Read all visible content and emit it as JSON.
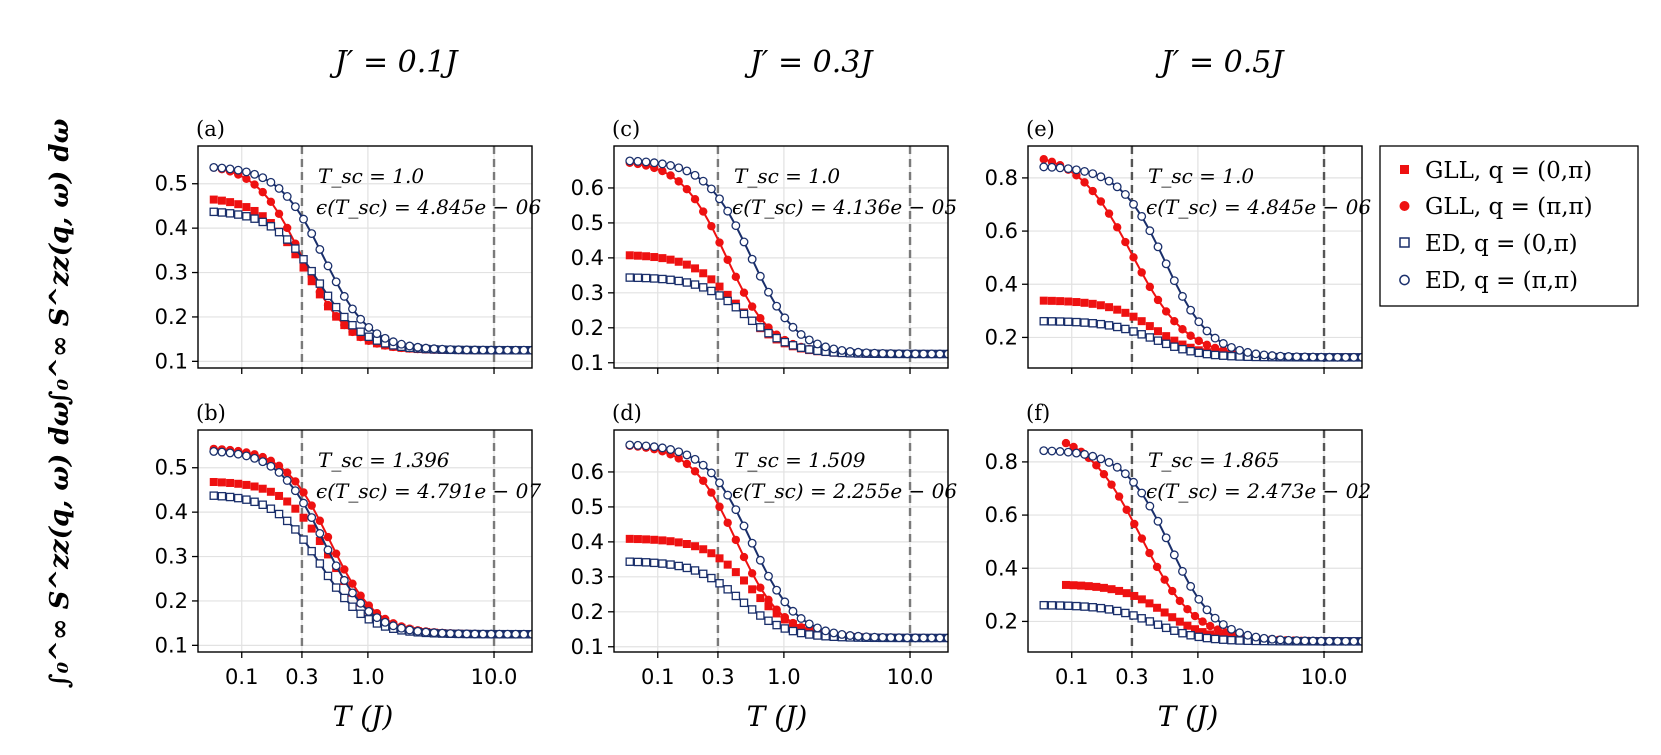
{
  "colors": {
    "gll": "#ee1111",
    "ed": "#1a2f6b",
    "grid": "#e2e2e2",
    "vline": "#7a7a7a"
  },
  "column_titles": [
    "J′ = 0.1J",
    "J′ = 0.3J",
    "J′ = 0.5J"
  ],
  "y_axis_label": "∫₀^∞ S^zz(q, ω) dω",
  "x_axis_label": "T (J)",
  "legend": [
    "GLL,  q = (0,π)",
    "GLL,  q = (π,π)",
    "ED,    q = (0,π)",
    "ED,    q = (π,π)"
  ],
  "chart_data": [
    {
      "type": "line",
      "panel": "(a)",
      "row": 0,
      "col": 0,
      "xscale": "log",
      "xlim": [
        0.045,
        20
      ],
      "ylim": [
        0.085,
        0.585
      ],
      "xticks": [
        0.1,
        0.3,
        1.0,
        10.0
      ],
      "xtick_labels": [
        "0.1",
        "0.3",
        "1.0",
        "10.0"
      ],
      "yticks": [
        0.1,
        0.2,
        0.3,
        0.4,
        0.5
      ],
      "ytick_labels": [
        "0.1",
        "0.2",
        "0.3",
        "0.4",
        "0.5"
      ],
      "vlines": [
        0.3,
        10.0
      ],
      "annotation": [
        "T_sc = 1.0",
        "ϵ(T_sc) = 4.845e − 06"
      ],
      "curves": {
        "gll_0pi": {
          "tmin": 0.06,
          "high": 0.47,
          "t0": 0.33,
          "low": 0.125
        },
        "gll_pipi": {
          "tmin": 0.06,
          "high": 0.545,
          "t0": 0.3,
          "low": 0.125
        },
        "ed_0pi": {
          "tmin": 0.06,
          "high": 0.44,
          "t0": 0.4,
          "low": 0.125
        },
        "ed_pipi": {
          "tmin": 0.06,
          "high": 0.54,
          "t0": 0.45,
          "low": 0.125
        }
      }
    },
    {
      "type": "line",
      "panel": "(b)",
      "row": 1,
      "col": 0,
      "xscale": "log",
      "xlim": [
        0.045,
        20
      ],
      "ylim": [
        0.085,
        0.585
      ],
      "xticks": [
        0.1,
        0.3,
        1.0,
        10.0
      ],
      "xtick_labels": [
        "0.1",
        "0.3",
        "1.0",
        "10.0"
      ],
      "yticks": [
        0.1,
        0.2,
        0.3,
        0.4,
        0.5
      ],
      "ytick_labels": [
        "0.1",
        "0.2",
        "0.3",
        "0.4",
        "0.5"
      ],
      "vlines": [
        0.3,
        10.0
      ],
      "annotation": [
        "T_sc = 1.396",
        "ϵ(T_sc) = 4.791e − 07"
      ],
      "curves": {
        "gll_0pi": {
          "tmin": 0.06,
          "high": 0.47,
          "t0": 0.5,
          "low": 0.125
        },
        "gll_pipi": {
          "tmin": 0.06,
          "high": 0.545,
          "t0": 0.5,
          "low": 0.125
        },
        "ed_0pi": {
          "tmin": 0.06,
          "high": 0.44,
          "t0": 0.42,
          "low": 0.125
        },
        "ed_pipi": {
          "tmin": 0.06,
          "high": 0.54,
          "t0": 0.45,
          "low": 0.125
        }
      }
    },
    {
      "type": "line",
      "panel": "(c)",
      "row": 0,
      "col": 1,
      "xscale": "log",
      "xlim": [
        0.045,
        20
      ],
      "ylim": [
        0.085,
        0.72
      ],
      "xticks": [
        0.1,
        0.3,
        1.0,
        10.0
      ],
      "xtick_labels": [
        "0.1",
        "0.3",
        "1.0",
        "10.0"
      ],
      "yticks": [
        0.1,
        0.2,
        0.3,
        0.4,
        0.5,
        0.6
      ],
      "ytick_labels": [
        "0.1",
        "0.2",
        "0.3",
        "0.4",
        "0.5",
        "0.6"
      ],
      "vlines": [
        0.3,
        10.0
      ],
      "annotation": [
        "T_sc = 1.0",
        "ϵ(T_sc) = 4.136e − 05"
      ],
      "curves": {
        "gll_0pi": {
          "tmin": 0.06,
          "high": 0.41,
          "t0": 0.42,
          "low": 0.125
        },
        "gll_pipi": {
          "tmin": 0.06,
          "high": 0.68,
          "t0": 0.35,
          "low": 0.125
        },
        "ed_0pi": {
          "tmin": 0.06,
          "high": 0.345,
          "t0": 0.5,
          "low": 0.125
        },
        "ed_pipi": {
          "tmin": 0.06,
          "high": 0.68,
          "t0": 0.55,
          "low": 0.125
        }
      }
    },
    {
      "type": "line",
      "panel": "(d)",
      "row": 1,
      "col": 1,
      "xscale": "log",
      "xlim": [
        0.045,
        20
      ],
      "ylim": [
        0.085,
        0.72
      ],
      "xticks": [
        0.1,
        0.3,
        1.0,
        10.0
      ],
      "xtick_labels": [
        "0.1",
        "0.3",
        "1.0",
        "10.0"
      ],
      "yticks": [
        0.1,
        0.2,
        0.3,
        0.4,
        0.5,
        0.6
      ],
      "ytick_labels": [
        "0.1",
        "0.2",
        "0.3",
        "0.4",
        "0.5",
        "0.6"
      ],
      "vlines": [
        0.3,
        10.0
      ],
      "annotation": [
        "T_sc = 1.509",
        "ϵ(T_sc) = 2.255e − 06"
      ],
      "curves": {
        "gll_0pi": {
          "tmin": 0.06,
          "high": 0.41,
          "t0": 0.55,
          "low": 0.125
        },
        "gll_pipi": {
          "tmin": 0.06,
          "high": 0.68,
          "t0": 0.42,
          "low": 0.125
        },
        "ed_0pi": {
          "tmin": 0.06,
          "high": 0.345,
          "t0": 0.45,
          "low": 0.125
        },
        "ed_pipi": {
          "tmin": 0.06,
          "high": 0.68,
          "t0": 0.55,
          "low": 0.125
        }
      }
    },
    {
      "type": "line",
      "panel": "(e)",
      "row": 0,
      "col": 2,
      "xscale": "log",
      "xlim": [
        0.045,
        20
      ],
      "ylim": [
        0.085,
        0.92
      ],
      "xticks": [
        0.1,
        0.3,
        1.0,
        10.0
      ],
      "xtick_labels": [
        "0.1",
        "0.3",
        "1.0",
        "10.0"
      ],
      "yticks": [
        0.2,
        0.4,
        0.6,
        0.8
      ],
      "ytick_labels": [
        "0.2",
        "0.4",
        "0.6",
        "0.8"
      ],
      "vlines": [
        0.3,
        10.0
      ],
      "annotation": [
        "T_sc = 1.0",
        "ϵ(T_sc) = 4.845e − 06"
      ],
      "curves": {
        "gll_0pi": {
          "tmin": 0.06,
          "high": 0.34,
          "t0": 0.45,
          "low": 0.125
        },
        "gll_pipi": {
          "tmin": 0.06,
          "high": 0.9,
          "t0": 0.3,
          "low": 0.125,
          "slope": 2.0
        },
        "ed_0pi": {
          "tmin": 0.06,
          "high": 0.262,
          "t0": 0.45,
          "low": 0.125
        },
        "ed_pipi": {
          "tmin": 0.06,
          "high": 0.845,
          "t0": 0.55,
          "low": 0.125
        }
      }
    },
    {
      "type": "line",
      "panel": "(f)",
      "row": 1,
      "col": 2,
      "xscale": "log",
      "xlim": [
        0.045,
        20
      ],
      "ylim": [
        0.085,
        0.92
      ],
      "xticks": [
        0.1,
        0.3,
        1.0,
        10.0
      ],
      "xtick_labels": [
        "0.1",
        "0.3",
        "1.0",
        "10.0"
      ],
      "yticks": [
        0.2,
        0.4,
        0.6,
        0.8
      ],
      "ytick_labels": [
        "0.2",
        "0.4",
        "0.6",
        "0.8"
      ],
      "vlines": [
        0.3,
        10.0
      ],
      "annotation": [
        "T_sc = 1.865",
        "ϵ(T_sc) = 2.473e − 02"
      ],
      "curves": {
        "gll_0pi": {
          "tmin": 0.09,
          "high": 0.34,
          "t0": 0.55,
          "low": 0.125
        },
        "gll_pipi": {
          "tmin": 0.09,
          "high": 0.92,
          "t0": 0.35,
          "low": 0.125,
          "slope": 2.0
        },
        "ed_0pi": {
          "tmin": 0.06,
          "high": 0.262,
          "t0": 0.45,
          "low": 0.125
        },
        "ed_pipi": {
          "tmin": 0.06,
          "high": 0.845,
          "t0": 0.6,
          "low": 0.125
        }
      }
    }
  ]
}
